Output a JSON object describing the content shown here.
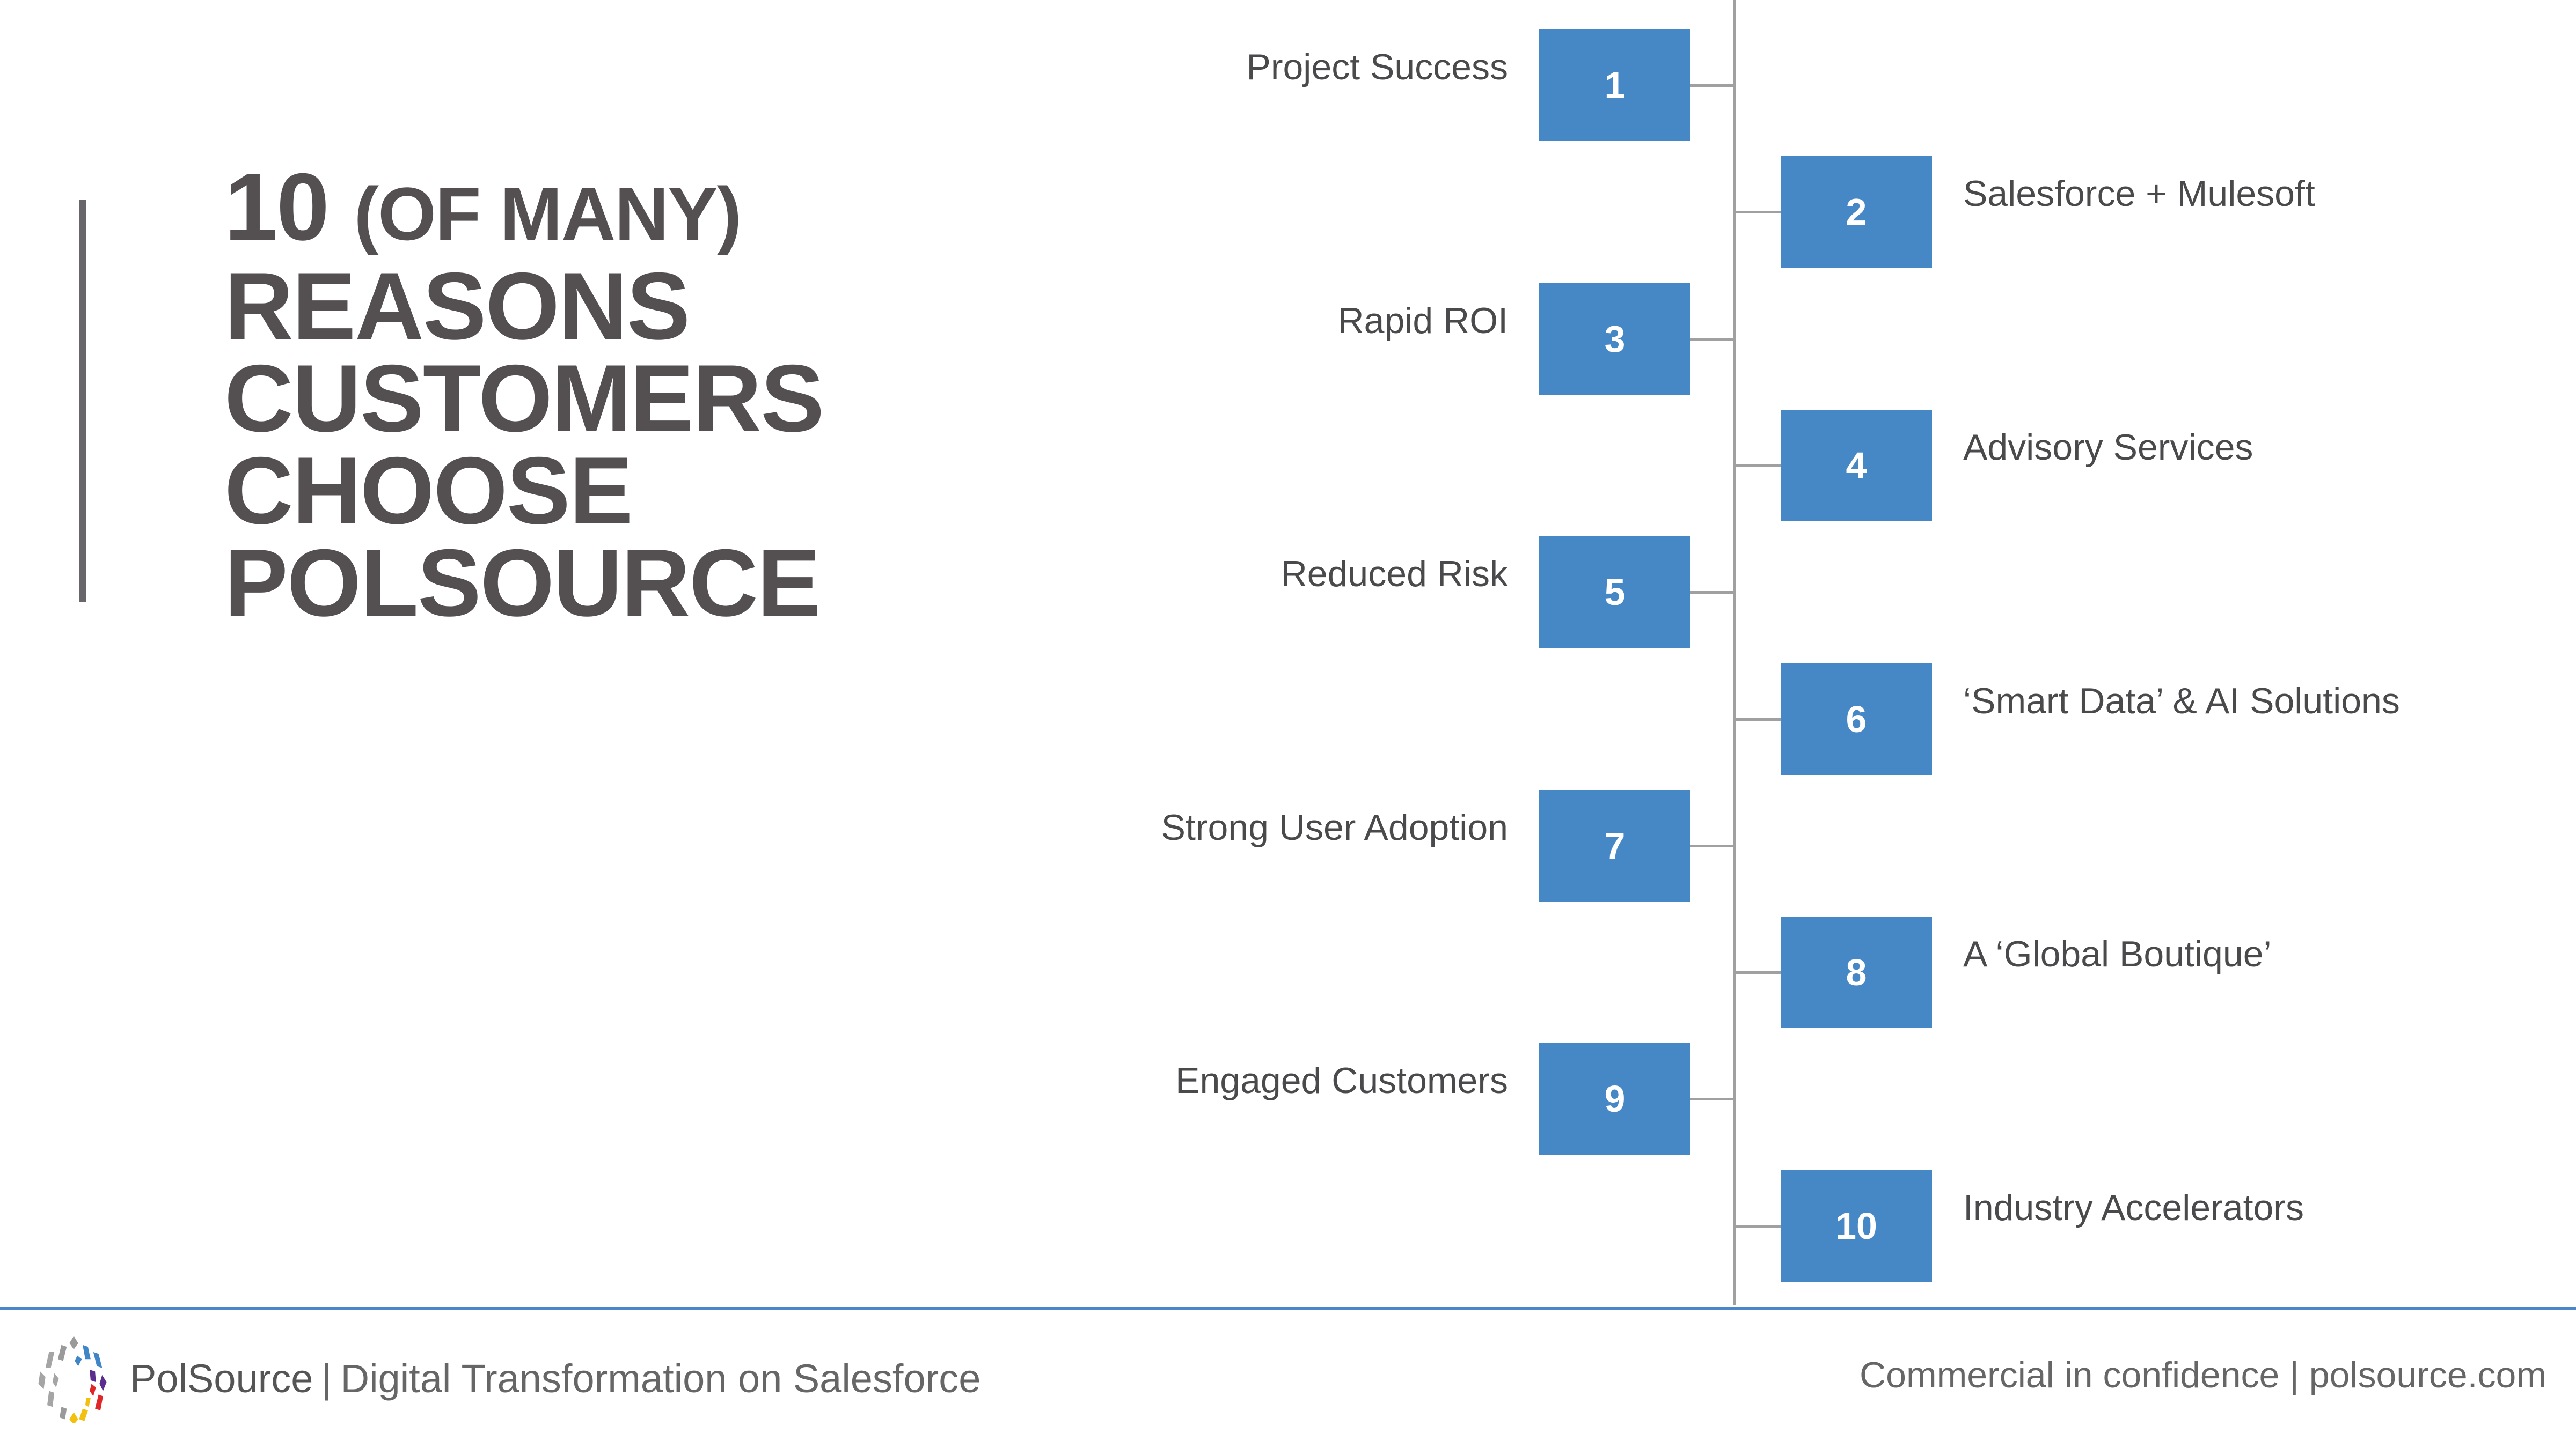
{
  "title": {
    "number": "10",
    "qualifier": "(OF MANY)",
    "lines": [
      "REASONS",
      "CUSTOMERS",
      "CHOOSE",
      "POLSOURCE"
    ]
  },
  "reasons": [
    {
      "number": "1",
      "label": "Project Success",
      "side": "left"
    },
    {
      "number": "2",
      "label": "Salesforce + Mulesoft",
      "side": "right"
    },
    {
      "number": "3",
      "label": "Rapid ROI",
      "side": "left"
    },
    {
      "number": "4",
      "label": "Advisory Services",
      "side": "right"
    },
    {
      "number": "5",
      "label": "Reduced Risk",
      "side": "left"
    },
    {
      "number": "6",
      "label": "‘Smart Data’ & AI Solutions",
      "side": "right"
    },
    {
      "number": "7",
      "label": "Strong User Adoption",
      "side": "left"
    },
    {
      "number": "8",
      "label": "A ‘Global Boutique’",
      "side": "right"
    },
    {
      "number": "9",
      "label": "Engaged Customers",
      "side": "left"
    },
    {
      "number": "10",
      "label": "Industry Accelerators",
      "side": "right"
    }
  ],
  "footer": {
    "brand": "PolSource",
    "separator": "|",
    "tagline": "Digital Transformation on Salesforce",
    "right_text": "Commercial in confidence | polsource.com",
    "logo_icon": "polsource-logo-icon"
  },
  "colors": {
    "accent": "#4687c6",
    "text": "#545052",
    "line": "#a0a0a0"
  }
}
